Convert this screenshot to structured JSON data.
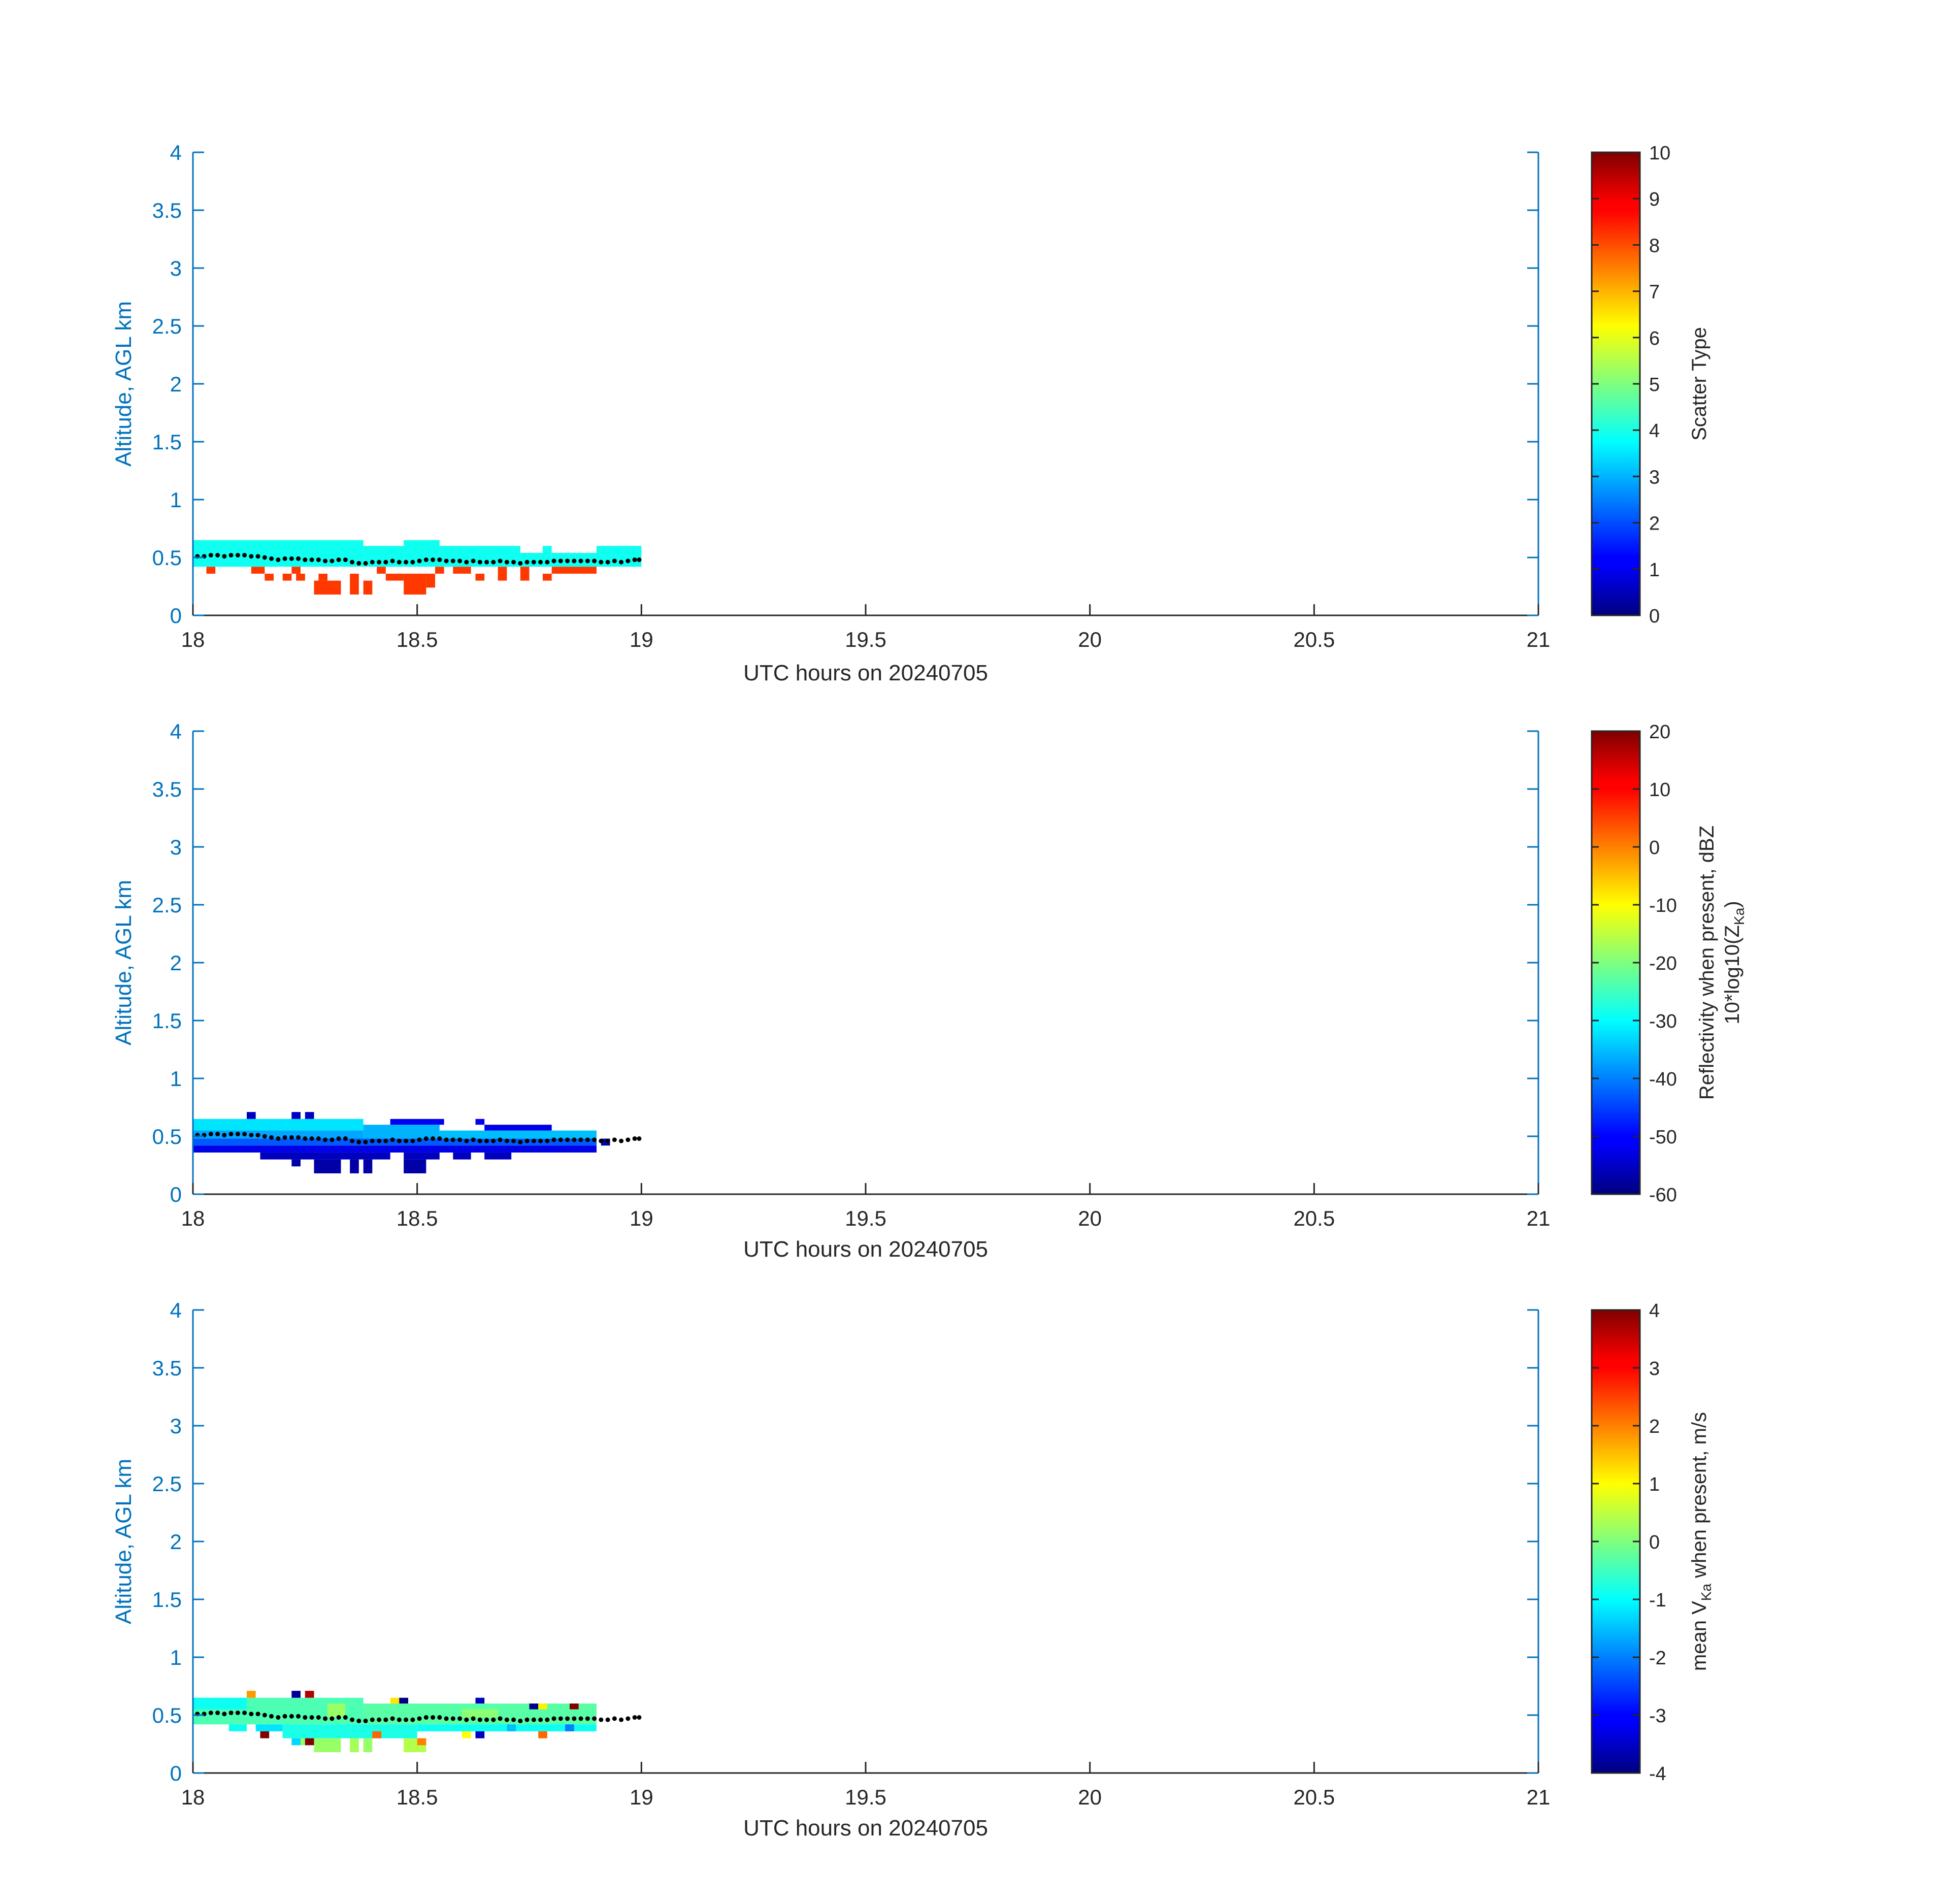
{
  "colors": {
    "axis_blue": "#0072bd",
    "text_dark": "#262626",
    "scatter_cyan": "#20ffe0",
    "scatter_red": "#ff3a10",
    "marker": "#000000"
  },
  "colormap": "jet",
  "chart_data": [
    {
      "type": "heatmap",
      "title": "",
      "xlabel": "UTC hours on 20240705",
      "ylabel": "Altitude, AGL km",
      "xlim": [
        18,
        21
      ],
      "ylim": [
        0,
        4
      ],
      "xticks": [
        "18",
        "18.5",
        "19",
        "19.5",
        "20",
        "20.5",
        "21"
      ],
      "yticks": [
        "0",
        "0.5",
        "1",
        "1.5",
        "2",
        "2.5",
        "3",
        "3.5",
        "4"
      ],
      "colorbar": {
        "label": "Scatter Type",
        "range": [
          0,
          10
        ],
        "ticks": [
          "0",
          "1",
          "2",
          "3",
          "4",
          "5",
          "6",
          "7",
          "8",
          "9",
          "10"
        ]
      },
      "cells": [
        {
          "x0": 18.0,
          "x1": 18.38,
          "y0": 0.42,
          "y1": 0.65,
          "v": 3.9
        },
        {
          "x0": 18.38,
          "x1": 18.47,
          "y0": 0.42,
          "y1": 0.6,
          "v": 3.9
        },
        {
          "x0": 18.47,
          "x1": 18.55,
          "y0": 0.42,
          "y1": 0.65,
          "v": 3.9
        },
        {
          "x0": 18.55,
          "x1": 18.73,
          "y0": 0.42,
          "y1": 0.6,
          "v": 3.9
        },
        {
          "x0": 18.73,
          "x1": 18.78,
          "y0": 0.42,
          "y1": 0.54,
          "v": 3.9
        },
        {
          "x0": 18.78,
          "x1": 18.8,
          "y0": 0.42,
          "y1": 0.6,
          "v": 3.9
        },
        {
          "x0": 18.8,
          "x1": 18.9,
          "y0": 0.42,
          "y1": 0.54,
          "v": 3.9
        },
        {
          "x0": 18.9,
          "x1": 19.0,
          "y0": 0.42,
          "y1": 0.6,
          "v": 3.9
        },
        {
          "x0": 18.03,
          "x1": 18.05,
          "y0": 0.36,
          "y1": 0.42,
          "v": 8.2
        },
        {
          "x0": 18.13,
          "x1": 18.16,
          "y0": 0.36,
          "y1": 0.42,
          "v": 8.2
        },
        {
          "x0": 18.16,
          "x1": 18.18,
          "y0": 0.3,
          "y1": 0.36,
          "v": 8.2
        },
        {
          "x0": 18.2,
          "x1": 18.22,
          "y0": 0.3,
          "y1": 0.36,
          "v": 8.2
        },
        {
          "x0": 18.22,
          "x1": 18.24,
          "y0": 0.36,
          "y1": 0.42,
          "v": 8.2
        },
        {
          "x0": 18.23,
          "x1": 18.25,
          "y0": 0.3,
          "y1": 0.36,
          "v": 8.2
        },
        {
          "x0": 18.27,
          "x1": 18.33,
          "y0": 0.18,
          "y1": 0.3,
          "v": 8.2
        },
        {
          "x0": 18.28,
          "x1": 18.3,
          "y0": 0.3,
          "y1": 0.36,
          "v": 8.2
        },
        {
          "x0": 18.35,
          "x1": 18.37,
          "y0": 0.18,
          "y1": 0.36,
          "v": 8.2
        },
        {
          "x0": 18.38,
          "x1": 18.4,
          "y0": 0.18,
          "y1": 0.3,
          "v": 8.2
        },
        {
          "x0": 18.41,
          "x1": 18.43,
          "y0": 0.36,
          "y1": 0.42,
          "v": 8.2
        },
        {
          "x0": 18.43,
          "x1": 18.47,
          "y0": 0.3,
          "y1": 0.36,
          "v": 8.2
        },
        {
          "x0": 18.47,
          "x1": 18.52,
          "y0": 0.18,
          "y1": 0.36,
          "v": 8.2
        },
        {
          "x0": 18.52,
          "x1": 18.54,
          "y0": 0.24,
          "y1": 0.36,
          "v": 8.2
        },
        {
          "x0": 18.54,
          "x1": 18.56,
          "y0": 0.36,
          "y1": 0.42,
          "v": 8.2
        },
        {
          "x0": 18.58,
          "x1": 18.6,
          "y0": 0.36,
          "y1": 0.42,
          "v": 8.2
        },
        {
          "x0": 18.6,
          "x1": 18.62,
          "y0": 0.36,
          "y1": 0.42,
          "v": 8.2
        },
        {
          "x0": 18.63,
          "x1": 18.65,
          "y0": 0.3,
          "y1": 0.36,
          "v": 8.2
        },
        {
          "x0": 18.68,
          "x1": 18.7,
          "y0": 0.3,
          "y1": 0.42,
          "v": 8.2
        },
        {
          "x0": 18.73,
          "x1": 18.75,
          "y0": 0.3,
          "y1": 0.42,
          "v": 8.2
        },
        {
          "x0": 18.78,
          "x1": 18.8,
          "y0": 0.3,
          "y1": 0.36,
          "v": 8.2
        },
        {
          "x0": 18.8,
          "x1": 18.9,
          "y0": 0.36,
          "y1": 0.42,
          "v": 8.2
        }
      ],
      "markers": {
        "x": [
          18.01,
          18.025,
          18.04,
          18.055,
          18.07,
          18.085,
          18.1,
          18.115,
          18.13,
          18.145,
          18.16,
          18.175,
          18.19,
          18.205,
          18.22,
          18.235,
          18.25,
          18.265,
          18.28,
          18.295,
          18.31,
          18.325,
          18.34,
          18.355,
          18.37,
          18.385,
          18.4,
          18.415,
          18.43,
          18.445,
          18.46,
          18.475,
          18.49,
          18.505,
          18.52,
          18.535,
          18.55,
          18.565,
          18.58,
          18.595,
          18.61,
          18.625,
          18.64,
          18.655,
          18.67,
          18.685,
          18.7,
          18.715,
          18.73,
          18.745,
          18.76,
          18.775,
          18.79,
          18.805,
          18.82,
          18.835,
          18.85,
          18.865,
          18.88,
          18.895,
          18.91,
          18.925,
          18.94,
          18.955,
          18.97,
          18.985,
          18.995
        ],
        "y": [
          0.51,
          0.51,
          0.52,
          0.52,
          0.51,
          0.52,
          0.52,
          0.52,
          0.51,
          0.51,
          0.5,
          0.49,
          0.48,
          0.49,
          0.49,
          0.49,
          0.48,
          0.48,
          0.48,
          0.47,
          0.47,
          0.48,
          0.48,
          0.46,
          0.45,
          0.45,
          0.46,
          0.46,
          0.46,
          0.47,
          0.46,
          0.46,
          0.46,
          0.47,
          0.48,
          0.48,
          0.48,
          0.47,
          0.47,
          0.47,
          0.46,
          0.47,
          0.46,
          0.46,
          0.46,
          0.47,
          0.46,
          0.46,
          0.45,
          0.46,
          0.46,
          0.46,
          0.46,
          0.47,
          0.47,
          0.47,
          0.47,
          0.47,
          0.47,
          0.47,
          0.46,
          0.46,
          0.47,
          0.46,
          0.47,
          0.48,
          0.48
        ]
      }
    },
    {
      "type": "heatmap",
      "title": "",
      "xlabel": "UTC hours on 20240705",
      "ylabel": "Altitude, AGL km",
      "xlim": [
        18,
        21
      ],
      "ylim": [
        0,
        4
      ],
      "xticks": [
        "18",
        "18.5",
        "19",
        "19.5",
        "20",
        "20.5",
        "21"
      ],
      "yticks": [
        "0",
        "0.5",
        "1",
        "1.5",
        "2",
        "2.5",
        "3",
        "3.5",
        "4"
      ],
      "colorbar": {
        "label_line1": "Reflectivity when present, dBZ",
        "label_line2_prefix": "10*log10(Z",
        "label_line2_sub": "Ka",
        "label_line2_suffix": ")",
        "range": [
          -60,
          20
        ],
        "ticks": [
          "-60",
          "-50",
          "-40",
          "-30",
          "-20",
          "-10",
          "0",
          "10",
          "20"
        ]
      },
      "cells": [
        {
          "x0": 18.0,
          "x1": 18.38,
          "y0": 0.55,
          "y1": 0.65,
          "v": -32
        },
        {
          "x0": 18.0,
          "x1": 18.38,
          "y0": 0.48,
          "y1": 0.55,
          "v": -37
        },
        {
          "x0": 18.0,
          "x1": 18.9,
          "y0": 0.42,
          "y1": 0.48,
          "v": -43
        },
        {
          "x0": 18.38,
          "x1": 18.55,
          "y0": 0.48,
          "y1": 0.6,
          "v": -36
        },
        {
          "x0": 18.55,
          "x1": 18.9,
          "y0": 0.48,
          "y1": 0.55,
          "v": -35
        },
        {
          "x0": 18.44,
          "x1": 18.56,
          "y0": 0.6,
          "y1": 0.65,
          "v": -51
        },
        {
          "x0": 18.63,
          "x1": 18.65,
          "y0": 0.6,
          "y1": 0.65,
          "v": -51
        },
        {
          "x0": 18.65,
          "x1": 18.8,
          "y0": 0.55,
          "y1": 0.6,
          "v": -52
        },
        {
          "x0": 18.0,
          "x1": 18.9,
          "y0": 0.36,
          "y1": 0.42,
          "v": -52
        },
        {
          "x0": 18.12,
          "x1": 18.14,
          "y0": 0.65,
          "y1": 0.71,
          "v": -55
        },
        {
          "x0": 18.22,
          "x1": 18.24,
          "y0": 0.65,
          "y1": 0.71,
          "v": -55
        },
        {
          "x0": 18.25,
          "x1": 18.27,
          "y0": 0.65,
          "y1": 0.71,
          "v": -55
        },
        {
          "x0": 18.15,
          "x1": 18.44,
          "y0": 0.3,
          "y1": 0.36,
          "v": -55
        },
        {
          "x0": 18.47,
          "x1": 18.55,
          "y0": 0.3,
          "y1": 0.36,
          "v": -55
        },
        {
          "x0": 18.58,
          "x1": 18.62,
          "y0": 0.3,
          "y1": 0.36,
          "v": -55
        },
        {
          "x0": 18.65,
          "x1": 18.71,
          "y0": 0.3,
          "y1": 0.36,
          "v": -55
        },
        {
          "x0": 18.22,
          "x1": 18.24,
          "y0": 0.24,
          "y1": 0.3,
          "v": -57
        },
        {
          "x0": 18.27,
          "x1": 18.33,
          "y0": 0.18,
          "y1": 0.3,
          "v": -57
        },
        {
          "x0": 18.35,
          "x1": 18.37,
          "y0": 0.18,
          "y1": 0.3,
          "v": -57
        },
        {
          "x0": 18.38,
          "x1": 18.4,
          "y0": 0.18,
          "y1": 0.3,
          "v": -57
        },
        {
          "x0": 18.47,
          "x1": 18.52,
          "y0": 0.18,
          "y1": 0.3,
          "v": -57
        },
        {
          "x0": 18.91,
          "x1": 18.93,
          "y0": 0.42,
          "y1": 0.48,
          "v": -57
        }
      ],
      "markers_same_as_panel": 0
    },
    {
      "type": "heatmap",
      "title": "",
      "xlabel": "UTC hours on 20240705",
      "ylabel": "Altitude, AGL km",
      "xlim": [
        18,
        21
      ],
      "ylim": [
        0,
        4
      ],
      "xticks": [
        "18",
        "18.5",
        "19",
        "19.5",
        "20",
        "20.5",
        "21"
      ],
      "yticks": [
        "0",
        "0.5",
        "1",
        "1.5",
        "2",
        "2.5",
        "3",
        "3.5",
        "4"
      ],
      "colorbar": {
        "label_prefix": "mean V",
        "label_sub": "Ka",
        "label_suffix": " when present, m/s",
        "range": [
          -4,
          4
        ],
        "ticks": [
          "-4",
          "-3",
          "-2",
          "-1",
          "0",
          "1",
          "2",
          "3",
          "4"
        ]
      },
      "cells": [
        {
          "x0": 18.0,
          "x1": 18.38,
          "y0": 0.42,
          "y1": 0.65,
          "v": -0.4
        },
        {
          "x0": 18.38,
          "x1": 18.9,
          "y0": 0.42,
          "y1": 0.6,
          "v": -0.3
        },
        {
          "x0": 18.0,
          "x1": 18.12,
          "y0": 0.55,
          "y1": 0.65,
          "v": -0.9
        },
        {
          "x0": 18.3,
          "x1": 18.34,
          "y0": 0.48,
          "y1": 0.6,
          "v": 0.2
        },
        {
          "x0": 18.6,
          "x1": 18.68,
          "y0": 0.48,
          "y1": 0.55,
          "v": 0.1
        },
        {
          "x0": 18.08,
          "x1": 18.12,
          "y0": 0.36,
          "y1": 0.42,
          "v": -0.9
        },
        {
          "x0": 18.14,
          "x1": 18.2,
          "y0": 0.36,
          "y1": 0.42,
          "v": -1.2
        },
        {
          "x0": 18.2,
          "x1": 18.35,
          "y0": 0.3,
          "y1": 0.42,
          "v": -0.8
        },
        {
          "x0": 18.35,
          "x1": 18.5,
          "y0": 0.3,
          "y1": 0.42,
          "v": -0.8
        },
        {
          "x0": 18.5,
          "x1": 18.9,
          "y0": 0.36,
          "y1": 0.42,
          "v": -0.9
        },
        {
          "x0": 18.27,
          "x1": 18.33,
          "y0": 0.18,
          "y1": 0.3,
          "v": 0.2
        },
        {
          "x0": 18.35,
          "x1": 18.37,
          "y0": 0.18,
          "y1": 0.3,
          "v": 0.3
        },
        {
          "x0": 18.38,
          "x1": 18.4,
          "y0": 0.18,
          "y1": 0.3,
          "v": 0.2
        },
        {
          "x0": 18.47,
          "x1": 18.52,
          "y0": 0.18,
          "y1": 0.3,
          "v": 0.4
        },
        {
          "x0": 18.22,
          "x1": 18.24,
          "y0": 0.24,
          "y1": 0.3,
          "v": -1.3
        },
        {
          "x0": 18.24,
          "x1": 18.26,
          "y0": 0.24,
          "y1": 0.3,
          "v": 0.2
        },
        {
          "x0": 18.12,
          "x1": 18.14,
          "y0": 0.65,
          "y1": 0.71,
          "v": 1.8
        },
        {
          "x0": 18.22,
          "x1": 18.24,
          "y0": 0.65,
          "y1": 0.71,
          "v": -3.8
        },
        {
          "x0": 18.25,
          "x1": 18.27,
          "y0": 0.65,
          "y1": 0.71,
          "v": 3.6
        },
        {
          "x0": 18.44,
          "x1": 18.46,
          "y0": 0.6,
          "y1": 0.65,
          "v": 1.2
        },
        {
          "x0": 18.46,
          "x1": 18.48,
          "y0": 0.6,
          "y1": 0.65,
          "v": -4
        },
        {
          "x0": 18.63,
          "x1": 18.65,
          "y0": 0.6,
          "y1": 0.65,
          "v": -3.5
        },
        {
          "x0": 18.75,
          "x1": 18.77,
          "y0": 0.55,
          "y1": 0.6,
          "v": -4
        },
        {
          "x0": 18.77,
          "x1": 18.79,
          "y0": 0.55,
          "y1": 0.6,
          "v": 1.1
        },
        {
          "x0": 18.84,
          "x1": 18.86,
          "y0": 0.55,
          "y1": 0.6,
          "v": 4
        },
        {
          "x0": 18.15,
          "x1": 18.17,
          "y0": 0.3,
          "y1": 0.36,
          "v": 4
        },
        {
          "x0": 18.25,
          "x1": 18.27,
          "y0": 0.24,
          "y1": 0.3,
          "v": 4
        },
        {
          "x0": 18.4,
          "x1": 18.42,
          "y0": 0.3,
          "y1": 0.36,
          "v": 2.2
        },
        {
          "x0": 18.5,
          "x1": 18.52,
          "y0": 0.24,
          "y1": 0.3,
          "v": 2.0
        },
        {
          "x0": 18.6,
          "x1": 18.62,
          "y0": 0.3,
          "y1": 0.36,
          "v": 1.0
        },
        {
          "x0": 18.63,
          "x1": 18.65,
          "y0": 0.3,
          "y1": 0.36,
          "v": -3.5
        },
        {
          "x0": 18.77,
          "x1": 18.79,
          "y0": 0.3,
          "y1": 0.36,
          "v": 2.2
        },
        {
          "x0": 18.83,
          "x1": 18.85,
          "y0": 0.36,
          "y1": 0.42,
          "v": -2
        },
        {
          "x0": 18.7,
          "x1": 18.72,
          "y0": 0.36,
          "y1": 0.42,
          "v": -1.5
        }
      ],
      "markers_same_as_panel": 0
    }
  ]
}
